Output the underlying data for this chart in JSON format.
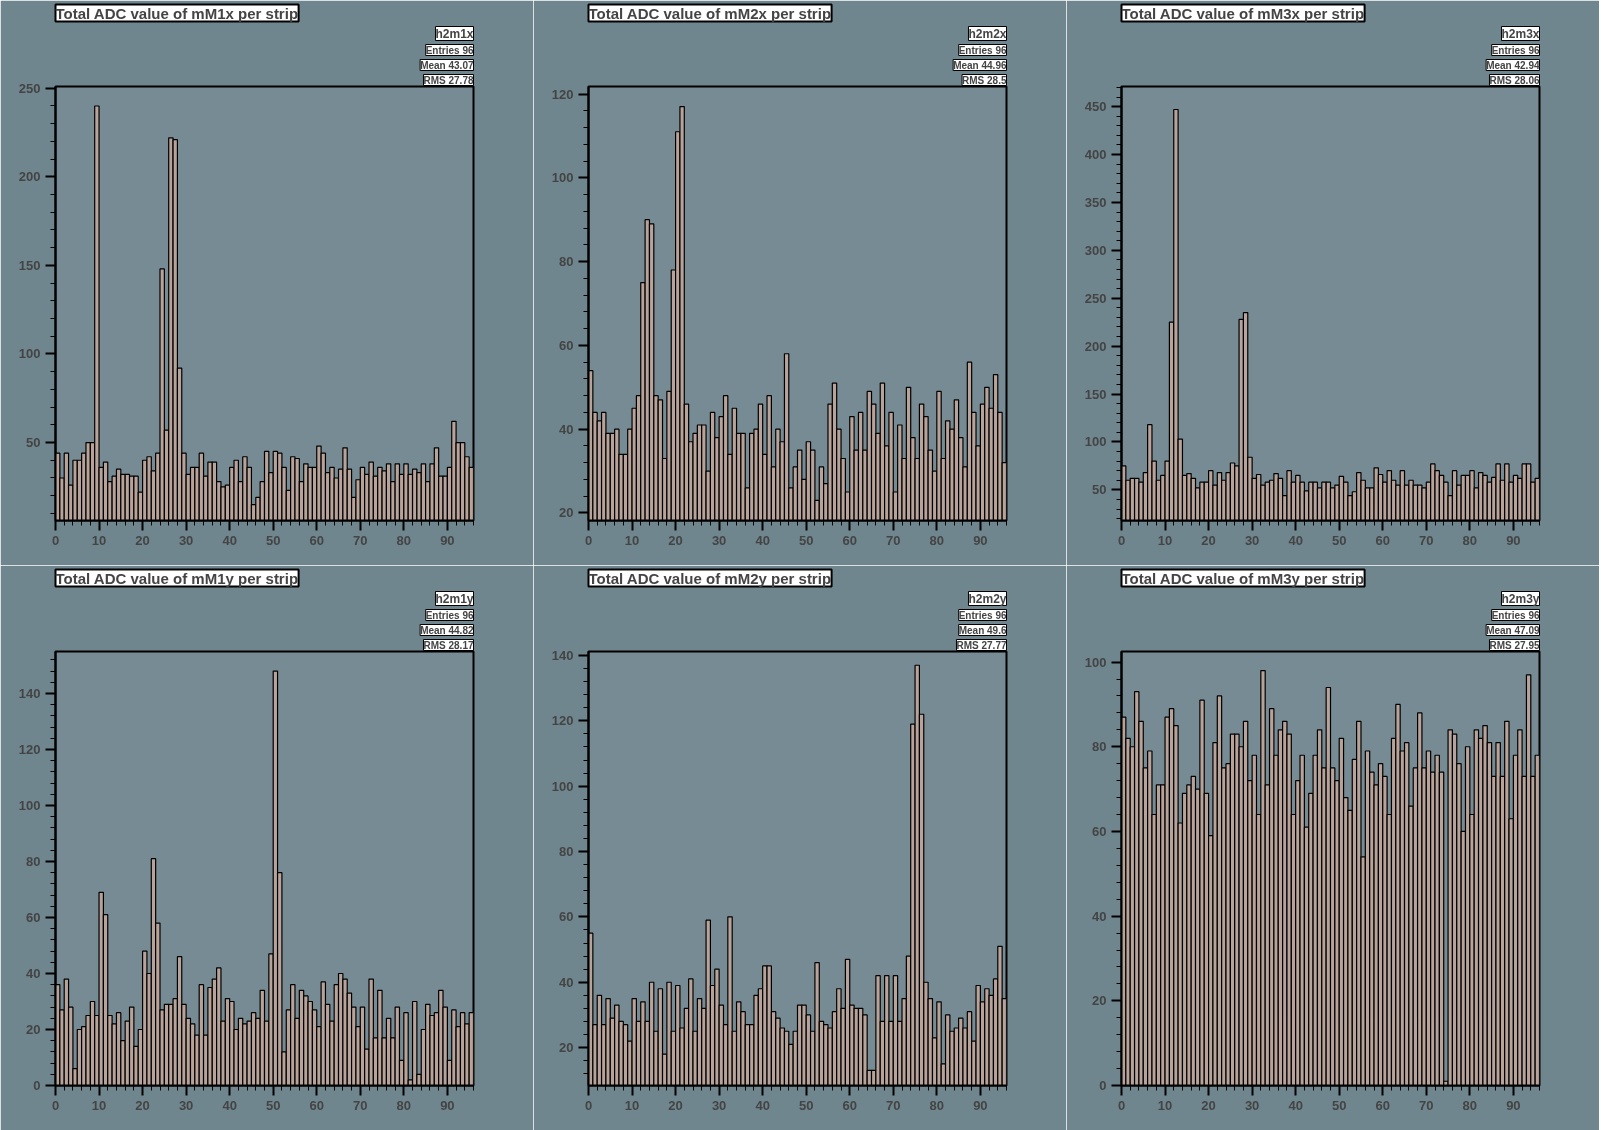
{
  "chart_data": [
    {
      "type": "histogram",
      "title": "Total ADC value of mM1x per strip",
      "annotations": [
        "h2m1x",
        "Entries 96",
        "Mean 43.07",
        "RMS 27.78"
      ],
      "color": "#b8a39a",
      "xlim": [
        0,
        96
      ],
      "xticks": [
        0,
        10,
        20,
        30,
        40,
        50,
        60,
        70,
        80,
        90
      ],
      "ylim": [
        6,
        251
      ],
      "yticks": [
        50,
        100,
        150,
        200,
        250
      ],
      "grid": false,
      "bins": [
        0,
        1,
        2,
        3,
        4,
        5,
        6,
        7,
        8,
        9,
        10,
        11,
        12,
        13,
        14,
        15,
        16,
        17,
        18,
        19,
        20,
        21,
        22,
        23,
        24,
        25,
        26,
        27,
        28,
        29,
        30,
        31,
        32,
        33,
        34,
        35,
        36,
        37,
        38,
        39,
        40,
        41,
        42,
        43,
        44,
        45,
        46,
        47,
        48,
        49,
        50,
        51,
        52,
        53,
        54,
        55,
        56,
        57,
        58,
        59,
        60,
        61,
        62,
        63,
        64,
        65,
        66,
        67,
        68,
        69,
        70,
        71,
        72,
        73,
        74,
        75,
        76,
        77,
        78,
        79,
        80,
        81,
        82,
        83,
        84,
        85,
        86,
        87,
        88,
        89,
        90,
        91,
        92,
        93,
        94,
        95,
        96
      ],
      "values": [
        44,
        30,
        44,
        26,
        40,
        40,
        44,
        50,
        50,
        240,
        36,
        39,
        28,
        31,
        35,
        32,
        32,
        31,
        31,
        22,
        40,
        42,
        34,
        44,
        148,
        57,
        222,
        221,
        92,
        44,
        32,
        36,
        36,
        44,
        31,
        39,
        39,
        28,
        25,
        26,
        36,
        40,
        28,
        42,
        36,
        15,
        19,
        28,
        45,
        33,
        45,
        44,
        36,
        23,
        42,
        41,
        28,
        38,
        36,
        36,
        48,
        44,
        33,
        36,
        30,
        35,
        47,
        35,
        19,
        29,
        36,
        32,
        39,
        31,
        36,
        34,
        38,
        28,
        38,
        32,
        38,
        32,
        35,
        33,
        38,
        28,
        38,
        47,
        31,
        31,
        36,
        62,
        50,
        50,
        42,
        36
      ]
    },
    {
      "type": "histogram",
      "title": "Total ADC value of mM2x per strip",
      "annotations": [
        "h2m2x",
        "Entries 96",
        "Mean 44.96",
        "RMS 28.5"
      ],
      "color": "#b8a39a",
      "xlim": [
        0,
        96
      ],
      "xticks": [
        0,
        10,
        20,
        30,
        40,
        50,
        60,
        70,
        80,
        90
      ],
      "ylim": [
        18.2,
        121.8
      ],
      "yticks": [
        20,
        40,
        60,
        80,
        100,
        120
      ],
      "grid": false,
      "bins": [
        0,
        1,
        2,
        3,
        4,
        5,
        6,
        7,
        8,
        9,
        10,
        11,
        12,
        13,
        14,
        15,
        16,
        17,
        18,
        19,
        20,
        21,
        22,
        23,
        24,
        25,
        26,
        27,
        28,
        29,
        30,
        31,
        32,
        33,
        34,
        35,
        36,
        37,
        38,
        39,
        40,
        41,
        42,
        43,
        44,
        45,
        46,
        47,
        48,
        49,
        50,
        51,
        52,
        53,
        54,
        55,
        56,
        57,
        58,
        59,
        60,
        61,
        62,
        63,
        64,
        65,
        66,
        67,
        68,
        69,
        70,
        71,
        72,
        73,
        74,
        75,
        76,
        77,
        78,
        79,
        80,
        81,
        82,
        83,
        84,
        85,
        86,
        87,
        88,
        89,
        90,
        91,
        92,
        93,
        94,
        95,
        96
      ],
      "values": [
        54,
        44,
        42,
        44,
        39,
        39,
        40,
        34,
        34,
        40,
        45,
        48,
        75,
        90,
        89,
        48,
        47,
        33,
        49,
        78,
        111,
        117,
        46,
        37,
        39,
        41,
        41,
        30,
        44,
        38,
        43,
        48,
        34,
        45,
        39,
        39,
        26,
        39,
        40,
        46,
        34,
        48,
        31,
        40,
        37,
        58,
        26,
        31,
        35,
        28,
        37,
        35,
        23,
        31,
        27,
        46,
        51,
        40,
        33,
        25,
        43,
        35,
        44,
        35,
        49,
        46,
        39,
        51,
        36,
        44,
        25,
        41,
        33,
        50,
        38,
        33,
        46,
        43,
        35,
        30,
        49,
        33,
        42,
        40,
        47,
        38,
        31,
        56,
        44,
        36,
        46,
        50,
        45,
        53,
        44,
        32
      ]
    },
    {
      "type": "histogram",
      "title": "Total ADC value of mM3x per strip",
      "annotations": [
        "h2m3x",
        "Entries 96",
        "Mean 42.94",
        "RMS 28.06"
      ],
      "color": "#b8a39a",
      "xlim": [
        0,
        96
      ],
      "xticks": [
        0,
        10,
        20,
        30,
        40,
        50,
        60,
        70,
        80,
        90
      ],
      "ylim": [
        18,
        471
      ],
      "yticks": [
        50,
        100,
        150,
        200,
        250,
        300,
        350,
        400,
        450
      ],
      "grid": false,
      "bins": [
        0,
        1,
        2,
        3,
        4,
        5,
        6,
        7,
        8,
        9,
        10,
        11,
        12,
        13,
        14,
        15,
        16,
        17,
        18,
        19,
        20,
        21,
        22,
        23,
        24,
        25,
        26,
        27,
        28,
        29,
        30,
        31,
        32,
        33,
        34,
        35,
        36,
        37,
        38,
        39,
        40,
        41,
        42,
        43,
        44,
        45,
        46,
        47,
        48,
        49,
        50,
        51,
        52,
        53,
        54,
        55,
        56,
        57,
        58,
        59,
        60,
        61,
        62,
        63,
        64,
        65,
        66,
        67,
        68,
        69,
        70,
        71,
        72,
        73,
        74,
        75,
        76,
        77,
        78,
        79,
        80,
        81,
        82,
        83,
        84,
        85,
        86,
        87,
        88,
        89,
        90,
        91,
        92,
        93,
        94,
        95,
        96
      ],
      "values": [
        75,
        60,
        62,
        62,
        58,
        68,
        118,
        80,
        60,
        65,
        80,
        225,
        447,
        103,
        65,
        67,
        62,
        52,
        58,
        58,
        70,
        55,
        68,
        60,
        68,
        78,
        75,
        228,
        235,
        84,
        62,
        66,
        55,
        58,
        60,
        67,
        62,
        44,
        70,
        58,
        65,
        58,
        49,
        58,
        58,
        52,
        58,
        58,
        52,
        55,
        64,
        58,
        44,
        48,
        68,
        60,
        52,
        52,
        73,
        66,
        58,
        70,
        60,
        55,
        70,
        55,
        60,
        55,
        55,
        52,
        58,
        77,
        70,
        65,
        58,
        44,
        70,
        55,
        65,
        65,
        70,
        52,
        68,
        65,
        58,
        63,
        77,
        60,
        77,
        58,
        65,
        62,
        77,
        77,
        58,
        62
      ]
    },
    {
      "type": "histogram",
      "title": "Total ADC value of mM1y per strip",
      "annotations": [
        "h2m1y",
        "Entries 96",
        "Mean 44.82",
        "RMS 28.17"
      ],
      "color": "#b8a39a",
      "xlim": [
        0,
        96
      ],
      "xticks": [
        0,
        10,
        20,
        30,
        40,
        50,
        60,
        70,
        80,
        90
      ],
      "ylim": [
        0,
        155
      ],
      "yticks": [
        0,
        20,
        40,
        60,
        80,
        100,
        120,
        140
      ],
      "grid": false,
      "bins": [
        0,
        1,
        2,
        3,
        4,
        5,
        6,
        7,
        8,
        9,
        10,
        11,
        12,
        13,
        14,
        15,
        16,
        17,
        18,
        19,
        20,
        21,
        22,
        23,
        24,
        25,
        26,
        27,
        28,
        29,
        30,
        31,
        32,
        33,
        34,
        35,
        36,
        37,
        38,
        39,
        40,
        41,
        42,
        43,
        44,
        45,
        46,
        47,
        48,
        49,
        50,
        51,
        52,
        53,
        54,
        55,
        56,
        57,
        58,
        59,
        60,
        61,
        62,
        63,
        64,
        65,
        66,
        67,
        68,
        69,
        70,
        71,
        72,
        73,
        74,
        75,
        76,
        77,
        78,
        79,
        80,
        81,
        82,
        83,
        84,
        85,
        86,
        87,
        88,
        89,
        90,
        91,
        92,
        93,
        94,
        95,
        96
      ],
      "values": [
        36,
        27,
        38,
        28,
        6,
        20,
        21,
        25,
        30,
        25,
        69,
        61,
        25,
        22,
        26,
        16,
        23,
        28,
        14,
        20,
        48,
        40,
        81,
        58,
        27,
        29,
        29,
        31,
        46,
        29,
        24,
        22,
        18,
        36,
        18,
        35,
        38,
        42,
        23,
        31,
        30,
        20,
        24,
        22,
        23,
        26,
        24,
        34,
        23,
        47,
        148,
        76,
        12,
        27,
        36,
        24,
        34,
        32,
        30,
        27,
        21,
        37,
        29,
        23,
        36,
        40,
        38,
        33,
        28,
        21,
        28,
        13,
        38,
        17,
        34,
        17,
        24,
        17,
        28,
        9,
        26,
        2,
        30,
        4,
        20,
        29,
        25,
        26,
        34,
        28,
        9,
        27,
        21,
        26,
        22,
        26
      ]
    },
    {
      "type": "histogram",
      "title": "Total ADC value of mM2y per strip",
      "annotations": [
        "h2m2y",
        "Entries 96",
        "Mean 49.6",
        "RMS 27.77"
      ],
      "color": "#b8a39a",
      "xlim": [
        0,
        96
      ],
      "xticks": [
        0,
        10,
        20,
        30,
        40,
        50,
        60,
        70,
        80,
        90
      ],
      "ylim": [
        8.4,
        141.2
      ],
      "yticks": [
        20,
        40,
        60,
        80,
        100,
        120,
        140
      ],
      "grid": false,
      "bins": [
        0,
        1,
        2,
        3,
        4,
        5,
        6,
        7,
        8,
        9,
        10,
        11,
        12,
        13,
        14,
        15,
        16,
        17,
        18,
        19,
        20,
        21,
        22,
        23,
        24,
        25,
        26,
        27,
        28,
        29,
        30,
        31,
        32,
        33,
        34,
        35,
        36,
        37,
        38,
        39,
        40,
        41,
        42,
        43,
        44,
        45,
        46,
        47,
        48,
        49,
        50,
        51,
        52,
        53,
        54,
        55,
        56,
        57,
        58,
        59,
        60,
        61,
        62,
        63,
        64,
        65,
        66,
        67,
        68,
        69,
        70,
        71,
        72,
        73,
        74,
        75,
        76,
        77,
        78,
        79,
        80,
        81,
        82,
        83,
        84,
        85,
        86,
        87,
        88,
        89,
        90,
        91,
        92,
        93,
        94,
        95,
        96
      ],
      "values": [
        55,
        27,
        36,
        27,
        35,
        29,
        33,
        28,
        27,
        22,
        35,
        28,
        34,
        28,
        40,
        25,
        38,
        18,
        40,
        25,
        39,
        26,
        32,
        41,
        25,
        35,
        32,
        59,
        39,
        44,
        33,
        27,
        60,
        25,
        34,
        31,
        27,
        27,
        36,
        38,
        45,
        45,
        31,
        29,
        26,
        25,
        21,
        25,
        33,
        33,
        30,
        25,
        46,
        28,
        27,
        26,
        31,
        38,
        32,
        47,
        33,
        32,
        32,
        30,
        13,
        13,
        42,
        28,
        42,
        28,
        42,
        28,
        35,
        48,
        119,
        137,
        122,
        40,
        35,
        23,
        34,
        15,
        30,
        25,
        26,
        29,
        26,
        31,
        22,
        39,
        34,
        38,
        36,
        41,
        51,
        35
      ]
    },
    {
      "type": "histogram",
      "title": "Total ADC value of mM3y per strip",
      "annotations": [
        "h2m3y",
        "Entries 96",
        "Mean 47.09",
        "RMS 27.95"
      ],
      "color": "#b8a39a",
      "xlim": [
        0,
        96
      ],
      "xticks": [
        0,
        10,
        20,
        30,
        40,
        50,
        60,
        70,
        80,
        90
      ],
      "ylim": [
        0,
        102.5
      ],
      "yticks": [
        0,
        20,
        40,
        60,
        80,
        100
      ],
      "grid": false,
      "bins": [
        0,
        1,
        2,
        3,
        4,
        5,
        6,
        7,
        8,
        9,
        10,
        11,
        12,
        13,
        14,
        15,
        16,
        17,
        18,
        19,
        20,
        21,
        22,
        23,
        24,
        25,
        26,
        27,
        28,
        29,
        30,
        31,
        32,
        33,
        34,
        35,
        36,
        37,
        38,
        39,
        40,
        41,
        42,
        43,
        44,
        45,
        46,
        47,
        48,
        49,
        50,
        51,
        52,
        53,
        54,
        55,
        56,
        57,
        58,
        59,
        60,
        61,
        62,
        63,
        64,
        65,
        66,
        67,
        68,
        69,
        70,
        71,
        72,
        73,
        74,
        75,
        76,
        77,
        78,
        79,
        80,
        81,
        82,
        83,
        84,
        85,
        86,
        87,
        88,
        89,
        90,
        91,
        92,
        93,
        94,
        95,
        96
      ],
      "values": [
        87,
        82,
        80,
        93,
        86,
        75,
        79,
        64,
        71,
        71,
        87,
        89,
        85,
        62,
        69,
        71,
        73,
        70,
        91,
        69,
        59,
        81,
        92,
        75,
        76,
        83,
        83,
        80,
        86,
        72,
        78,
        64,
        98,
        71,
        89,
        78,
        84,
        86,
        83,
        64,
        72,
        78,
        61,
        69,
        78,
        84,
        75,
        94,
        75,
        72,
        82,
        68,
        65,
        77,
        86,
        54,
        79,
        74,
        71,
        76,
        73,
        64,
        82,
        90,
        79,
        81,
        66,
        75,
        88,
        75,
        79,
        74,
        78,
        74,
        1,
        84,
        83,
        76,
        60,
        80,
        64,
        84,
        82,
        85,
        81,
        73,
        81,
        73,
        86,
        63,
        78,
        84,
        73,
        97,
        73,
        78
      ]
    }
  ]
}
